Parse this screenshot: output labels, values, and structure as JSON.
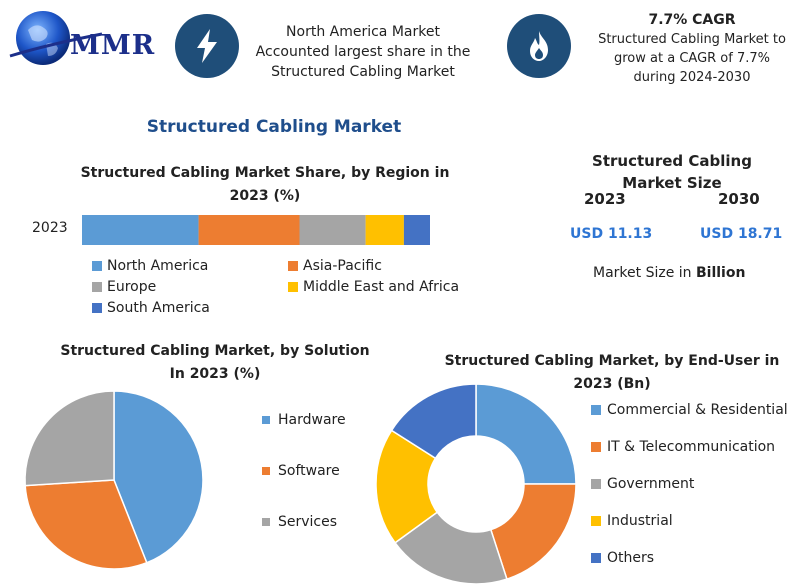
{
  "brand": {
    "logo_text": "MMR"
  },
  "header": {
    "left_text": "North America Market Accounted largest share in the Structured Cabling Market",
    "cagr_title": "7.7% CAGR",
    "cagr_text": "Structured Cabling Market to grow at a CAGR of 7.7% during 2024-2030"
  },
  "main_title": "Structured Cabling Market",
  "market_size": {
    "title": "Structured Cabling Market Size",
    "year_start": "2023",
    "year_end": "2030",
    "value_start": "USD 11.13",
    "value_end": "USD 18.71",
    "unit_prefix": "Market Size in ",
    "unit_bold": "Billion"
  },
  "colors": {
    "blue": "#5b9bd5",
    "orange": "#ed7d31",
    "gray": "#a5a5a5",
    "yellow": "#ffc000",
    "dark_blue": "#4472c4",
    "icon_bg": "#1f4e79"
  },
  "icons": {
    "left": "lightning-icon",
    "right": "flame-icon"
  },
  "chart_data": [
    {
      "type": "bar",
      "title": "Structured Cabling Market Share, by Region in 2023 (%)",
      "categories": [
        "2023"
      ],
      "stacked": true,
      "orientation": "horizontal",
      "series": [
        {
          "name": "North America",
          "values": [
            33.5
          ]
        },
        {
          "name": "Asia-Pacific",
          "values": [
            29
          ]
        },
        {
          "name": "Europe",
          "values": [
            19
          ]
        },
        {
          "name": "Middle East and Africa",
          "values": [
            11
          ]
        },
        {
          "name": "South America",
          "values": [
            7.5
          ]
        }
      ],
      "legend": "bottom"
    },
    {
      "type": "pie",
      "title": "Structured Cabling Market, by Solution In 2023 (%)",
      "labels": [
        "Hardware",
        "Software",
        "Services"
      ],
      "values": [
        44,
        30,
        26
      ],
      "legend": "right"
    },
    {
      "type": "pie",
      "title": "Structured Cabling Market, by End-User in 2023 (Bn)",
      "donut": true,
      "labels": [
        "Commercial & Residential",
        "IT & Telecommunication",
        "Government",
        "Industrial",
        "Others"
      ],
      "values": [
        25,
        20,
        20,
        19,
        16
      ],
      "legend": "right"
    }
  ]
}
